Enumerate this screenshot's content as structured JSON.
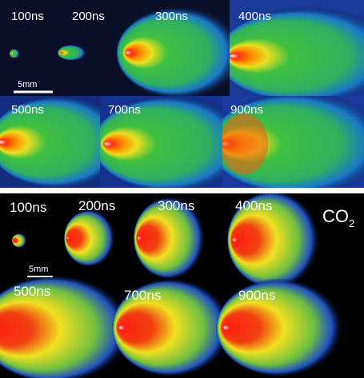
{
  "top_panel": {
    "frames": [
      "100ns",
      "200ns",
      "300ns",
      "400ns",
      "500ns",
      "700ns",
      "900ns"
    ],
    "scale_bar": "5mm"
  },
  "bottom_panel": {
    "frames": [
      "100ns",
      "200ns",
      "300ns",
      "400ns",
      "500ns",
      "700ns",
      "900ns"
    ],
    "scale_bar": "5mm",
    "gas": {
      "text": "CO",
      "subscript": "2"
    }
  }
}
